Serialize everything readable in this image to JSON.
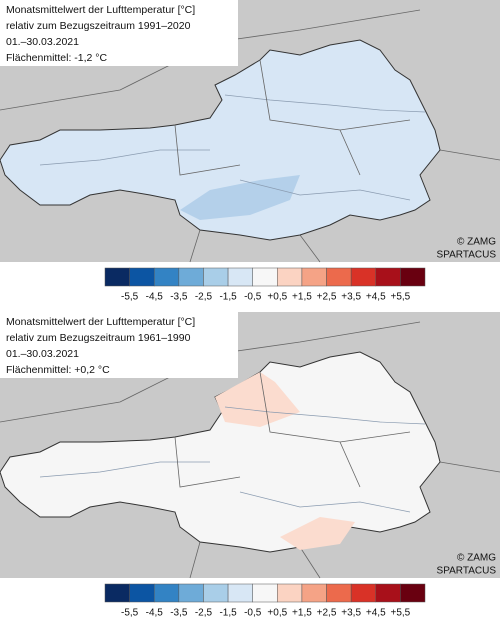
{
  "panels": [
    {
      "title_lines": [
        "Monatsmittelwert der Lufttemperatur [°C]",
        "relativ zum Bezugszeitraum 1991–2020",
        "01.–30.03.2021",
        "Flächenmittel: -1,2 °C"
      ],
      "credits": [
        "© ZAMG",
        "SPARTACUS"
      ],
      "legend": {
        "colors": [
          "#0a2a62",
          "#0c55a3",
          "#3383c4",
          "#6eabd8",
          "#a9cee8",
          "#d8e7f5",
          "#f7f7f7",
          "#fbd3c2",
          "#f5a386",
          "#ec6a4c",
          "#d93227",
          "#a8101a",
          "#690010"
        ],
        "labels": [
          "-5,5",
          "-4,5",
          "-3,5",
          "-2,5",
          "-1,5",
          "-0,5",
          "+0,5",
          "+1,5",
          "+2,5",
          "+3,5",
          "+4,5",
          "+5,5"
        ]
      }
    },
    {
      "title_lines": [
        "Monatsmittelwert der Lufttemperatur [°C]",
        "relativ zum Bezugszeitraum 1961–1990",
        "01.–30.03.2021",
        "Flächenmittel: +0,2 °C"
      ],
      "credits": [
        "© ZAMG",
        "SPARTACUS"
      ],
      "legend": {
        "colors": [
          "#0a2a62",
          "#0c55a3",
          "#3383c4",
          "#6eabd8",
          "#a9cee8",
          "#d8e7f5",
          "#f7f7f7",
          "#fbd3c2",
          "#f5a386",
          "#ec6a4c",
          "#d93227",
          "#a8101a",
          "#690010"
        ],
        "labels": [
          "-5,5",
          "-4,5",
          "-3,5",
          "-2,5",
          "-1,5",
          "-0,5",
          "+0,5",
          "+1,5",
          "+2,5",
          "+3,5",
          "+4,5",
          "+5,5"
        ]
      }
    }
  ]
}
